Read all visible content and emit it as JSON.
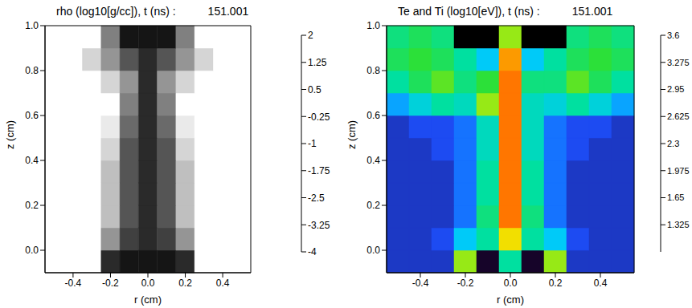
{
  "chart_data": [
    {
      "type": "heatmap",
      "title": "rho (log10[g/cc]), t (ns) :",
      "time": 151.001,
      "x_label": "r (cm)",
      "y_label": "z (cm)",
      "xlim": [
        -0.55,
        0.55
      ],
      "ylim": [
        -0.1,
        1.0
      ],
      "xticks": [
        -0.4,
        -0.2,
        {
          "value": 0,
          "label": "0.0"
        },
        0.2,
        0.4
      ],
      "yticks": [
        {
          "value": 0,
          "label": "0.0"
        },
        0.2,
        0.4,
        0.6,
        0.8,
        {
          "value": 1,
          "label": "1.0"
        }
      ],
      "x_bins": [
        -0.55,
        -0.45,
        -0.35,
        -0.25,
        -0.15,
        -0.05,
        0.05,
        0.15,
        0.25,
        0.35,
        0.45,
        0.55
      ],
      "y_bins": [
        -0.1,
        0.0,
        0.1,
        0.2,
        0.3,
        0.4,
        0.5,
        0.6,
        0.7,
        0.8,
        0.9,
        1.0
      ],
      "cells": [
        [
          -4,
          -4,
          -4,
          1,
          1.5,
          1.5,
          1.5,
          1,
          -4,
          -4,
          -4
        ],
        [
          -4,
          -4,
          -4,
          -1.5,
          0.5,
          1,
          0.5,
          -1.5,
          -4,
          -4,
          -4
        ],
        [
          -4,
          -4,
          -4,
          -2.5,
          0,
          1,
          0,
          -2.5,
          -4,
          -4,
          -4
        ],
        [
          -4,
          -4,
          -4,
          -2.5,
          0,
          1,
          0,
          -2.5,
          -4,
          -4,
          -4
        ],
        [
          -4,
          -4,
          -4,
          -2.5,
          0,
          1,
          0,
          -2.5,
          -4,
          -4,
          -4
        ],
        [
          -4,
          -4,
          -4,
          -3,
          0,
          1,
          0,
          -3,
          -4,
          -4,
          -4
        ],
        [
          -4,
          -4,
          -4,
          -3.5,
          -0.5,
          1,
          -0.5,
          -3.5,
          -4,
          -4,
          -4
        ],
        [
          -4,
          -4,
          -4,
          -4,
          -1,
          1,
          -1,
          -4,
          -4,
          -4,
          -4
        ],
        [
          -4,
          -4,
          -4,
          -3,
          -1.5,
          1,
          -1.5,
          -3,
          -4,
          -4,
          -4
        ],
        [
          -4,
          -4,
          -3,
          -1.5,
          0,
          1,
          0,
          -1.5,
          -3,
          -4,
          -4
        ],
        [
          -4,
          -4,
          -4,
          -1,
          1.5,
          1.5,
          1.5,
          -1,
          -4,
          -4,
          -4
        ]
      ],
      "colorbar": {
        "range": [
          -4,
          2
        ],
        "ticks": [
          2,
          1.25,
          0.5,
          -0.25,
          -1,
          -1.75,
          -2.5,
          -3.25,
          -4
        ]
      }
    },
    {
      "type": "heatmap",
      "title": "Te and Ti (log10[eV]), t (ns) :",
      "time": 151.001,
      "x_label": "r (cm)",
      "y_label": "z (cm)",
      "xlim": [
        -0.55,
        0.55
      ],
      "ylim": [
        -0.1,
        1.0
      ],
      "xticks": [
        -0.4,
        -0.2,
        {
          "value": 0,
          "label": "0.0"
        },
        0.2,
        0.4
      ],
      "yticks": [
        {
          "value": 0,
          "label": "0.0"
        },
        0.2,
        0.4,
        0.6,
        0.8,
        {
          "value": 1,
          "label": "1.0"
        }
      ],
      "x_bins": [
        -0.55,
        -0.45,
        -0.35,
        -0.25,
        -0.15,
        -0.05,
        0.05,
        0.15,
        0.25,
        0.35,
        0.45,
        0.55
      ],
      "y_bins": [
        -0.1,
        0.0,
        0.1,
        0.2,
        0.3,
        0.4,
        0.5,
        0.6,
        0.7,
        0.8,
        0.9,
        1.0
      ],
      "cells": [
        [
          1.6,
          1.6,
          1.6,
          2.8,
          1.1,
          2.3,
          1.1,
          2.8,
          1.6,
          1.6,
          1.6
        ],
        [
          1.6,
          1.6,
          1.7,
          2.0,
          2.3,
          3.0,
          2.3,
          2.0,
          1.7,
          1.6,
          1.6
        ],
        [
          1.6,
          1.6,
          1.6,
          1.8,
          2.4,
          3.3,
          2.4,
          1.8,
          1.6,
          1.6,
          1.6
        ],
        [
          1.6,
          1.6,
          1.6,
          1.8,
          2.3,
          3.3,
          2.3,
          1.8,
          1.6,
          1.6,
          1.6
        ],
        [
          1.6,
          1.6,
          1.6,
          1.8,
          2.3,
          3.3,
          2.3,
          1.8,
          1.6,
          1.6,
          1.6
        ],
        [
          1.6,
          1.6,
          1.7,
          1.8,
          2.2,
          3.3,
          2.2,
          1.8,
          1.7,
          1.6,
          1.6
        ],
        [
          1.6,
          1.7,
          1.7,
          1.8,
          2.2,
          3.3,
          2.2,
          1.8,
          1.7,
          1.7,
          1.6
        ],
        [
          1.9,
          2.1,
          2.3,
          2.2,
          2.8,
          3.3,
          2.2,
          2.1,
          2.3,
          2.1,
          1.9
        ],
        [
          2.3,
          2.5,
          2.7,
          2.4,
          2.6,
          3.3,
          2.4,
          2.4,
          2.7,
          2.5,
          2.3
        ],
        [
          2.5,
          2.6,
          2.5,
          2.3,
          2.0,
          3.2,
          2.0,
          2.3,
          2.5,
          2.6,
          2.5
        ],
        [
          2.4,
          2.5,
          2.4,
          1.0,
          1.0,
          2.8,
          1.0,
          1.0,
          2.4,
          2.5,
          2.4
        ]
      ],
      "colorbar": {
        "range": [
          1.0,
          3.6
        ],
        "ticks": [
          3.6,
          3.275,
          2.95,
          2.625,
          2.3,
          1.975,
          1.65,
          1.325
        ]
      }
    }
  ]
}
